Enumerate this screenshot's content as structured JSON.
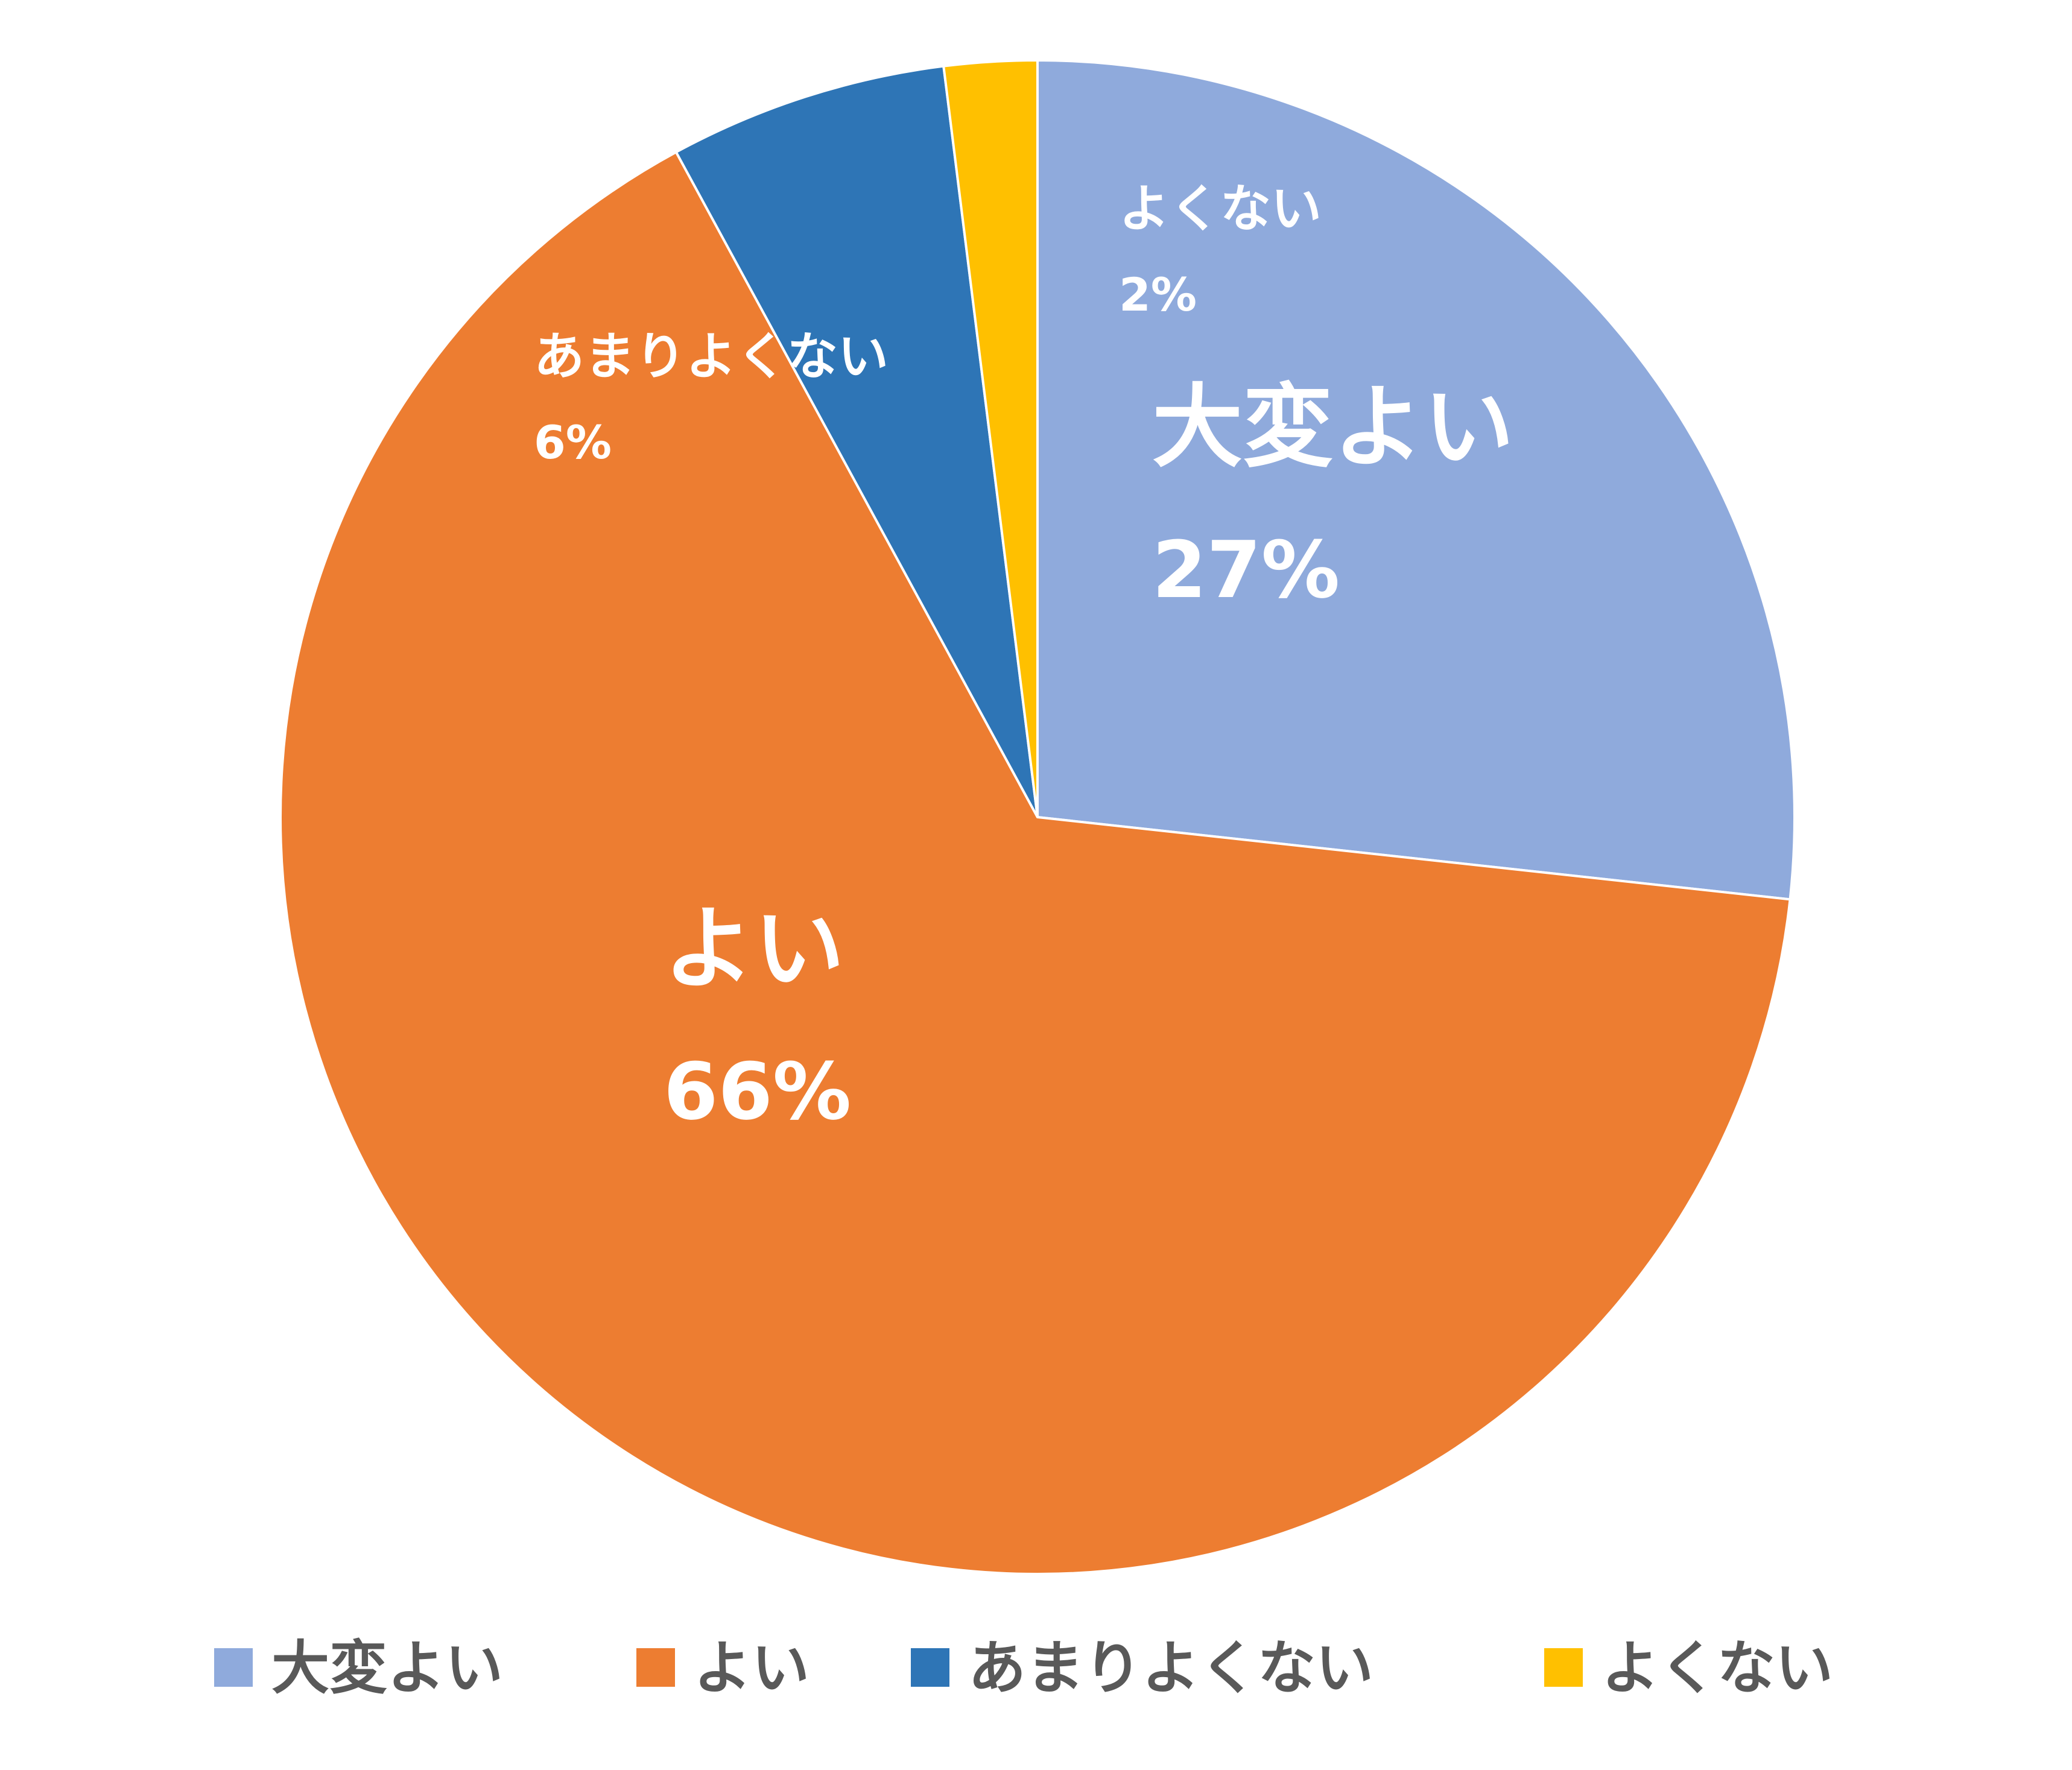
{
  "chart_data": {
    "type": "pie",
    "title": "",
    "categories": [
      "大変よい",
      "よい",
      "あまりよくない",
      "よくない"
    ],
    "values": [
      27,
      66,
      6,
      2
    ],
    "value_labels": [
      "27%",
      "66%",
      "6%",
      "2%"
    ],
    "colors": [
      "#8FAADC",
      "#ED7D31",
      "#2E75B6",
      "#FFC000"
    ],
    "legend": "bottom"
  }
}
